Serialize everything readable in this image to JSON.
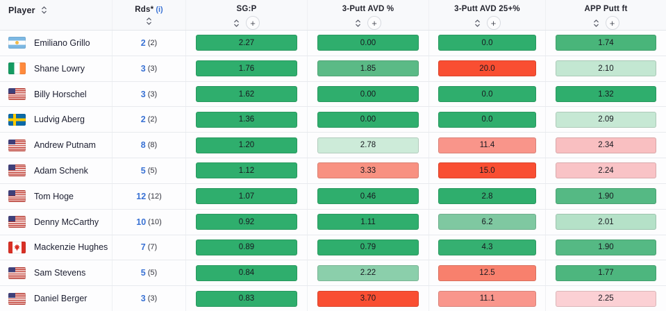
{
  "table": {
    "header": {
      "player": {
        "label": "Player"
      },
      "add_symbol": "+",
      "columns": [
        {
          "key": "rds",
          "label": "Rds*",
          "info": "(i)",
          "has_plus": false
        },
        {
          "key": "sgp",
          "label": "SG:P",
          "info": "",
          "has_plus": true
        },
        {
          "key": "tpa",
          "label": "3-Putt AVD %",
          "info": "",
          "has_plus": true
        },
        {
          "key": "tpa25",
          "label": "3-Putt AVD 25+%",
          "info": "",
          "has_plus": true
        },
        {
          "key": "app",
          "label": "APP Putt ft",
          "info": "",
          "has_plus": true
        }
      ]
    },
    "palette": {
      "strong_green": "#2fae6d",
      "medium_green": "#55b984",
      "light_green": "#c6e8d4",
      "strong_red": "#f94e32",
      "salmon": "#f9958a",
      "pink": "#f9c3c6",
      "rounds_blue": "#3a72d4"
    },
    "rows": [
      {
        "player": "Emiliano Grillo",
        "country": "argentina",
        "rounds": "2",
        "rounds_paren": "(2)",
        "cells": [
          {
            "value": "2.27",
            "color": "#2fae6d"
          },
          {
            "value": "0.00",
            "color": "#2fae6d"
          },
          {
            "value": "0.0",
            "color": "#2fae6d"
          },
          {
            "value": "1.74",
            "color": "#49b57a"
          }
        ]
      },
      {
        "player": "Shane Lowry",
        "country": "ireland",
        "rounds": "3",
        "rounds_paren": "(3)",
        "cells": [
          {
            "value": "1.76",
            "color": "#2fae6d"
          },
          {
            "value": "1.85",
            "color": "#5bba86"
          },
          {
            "value": "20.0",
            "color": "#f94e32"
          },
          {
            "value": "2.10",
            "color": "#c3e7d2"
          }
        ]
      },
      {
        "player": "Billy Horschel",
        "country": "usa",
        "rounds": "3",
        "rounds_paren": "(3)",
        "cells": [
          {
            "value": "1.62",
            "color": "#2fae6d"
          },
          {
            "value": "0.00",
            "color": "#2fae6d"
          },
          {
            "value": "0.0",
            "color": "#2fae6d"
          },
          {
            "value": "1.32",
            "color": "#2fae6d"
          }
        ]
      },
      {
        "player": "Ludvig Aberg",
        "country": "sweden",
        "rounds": "2",
        "rounds_paren": "(2)",
        "cells": [
          {
            "value": "1.36",
            "color": "#2fae6d"
          },
          {
            "value": "0.00",
            "color": "#2fae6d"
          },
          {
            "value": "0.0",
            "color": "#2fae6d"
          },
          {
            "value": "2.09",
            "color": "#c6e8d4"
          }
        ]
      },
      {
        "player": "Andrew Putnam",
        "country": "usa",
        "rounds": "8",
        "rounds_paren": "(8)",
        "cells": [
          {
            "value": "1.20",
            "color": "#2fae6d"
          },
          {
            "value": "2.78",
            "color": "#cdebd9"
          },
          {
            "value": "11.4",
            "color": "#f9958a"
          },
          {
            "value": "2.34",
            "color": "#f9bfc1"
          }
        ]
      },
      {
        "player": "Adam Schenk",
        "country": "usa",
        "rounds": "5",
        "rounds_paren": "(5)",
        "cells": [
          {
            "value": "1.12",
            "color": "#2fae6d"
          },
          {
            "value": "3.33",
            "color": "#f89181"
          },
          {
            "value": "15.0",
            "color": "#f94e32"
          },
          {
            "value": "2.24",
            "color": "#f9c3c6"
          }
        ]
      },
      {
        "player": "Tom Hoge",
        "country": "usa",
        "rounds": "12",
        "rounds_paren": "(12)",
        "cells": [
          {
            "value": "1.07",
            "color": "#2fae6d"
          },
          {
            "value": "0.46",
            "color": "#2fae6d"
          },
          {
            "value": "2.8",
            "color": "#2fae6d"
          },
          {
            "value": "1.90",
            "color": "#55b984"
          }
        ]
      },
      {
        "player": "Denny McCarthy",
        "country": "usa",
        "rounds": "10",
        "rounds_paren": "(10)",
        "cells": [
          {
            "value": "0.92",
            "color": "#2fae6d"
          },
          {
            "value": "1.11",
            "color": "#2fae6d"
          },
          {
            "value": "6.2",
            "color": "#7fc8a1"
          },
          {
            "value": "2.01",
            "color": "#b5e1c8"
          }
        ]
      },
      {
        "player": "Mackenzie Hughes",
        "country": "canada",
        "rounds": "7",
        "rounds_paren": "(7)",
        "cells": [
          {
            "value": "0.89",
            "color": "#2fae6d"
          },
          {
            "value": "0.79",
            "color": "#2fae6d"
          },
          {
            "value": "4.3",
            "color": "#35b071"
          },
          {
            "value": "1.90",
            "color": "#55b984"
          }
        ]
      },
      {
        "player": "Sam Stevens",
        "country": "usa",
        "rounds": "5",
        "rounds_paren": "(5)",
        "cells": [
          {
            "value": "0.84",
            "color": "#2fae6d"
          },
          {
            "value": "2.22",
            "color": "#8bcfab"
          },
          {
            "value": "12.5",
            "color": "#f8806d"
          },
          {
            "value": "1.77",
            "color": "#4db67e"
          }
        ]
      },
      {
        "player": "Daniel Berger",
        "country": "usa",
        "rounds": "3",
        "rounds_paren": "(3)",
        "cells": [
          {
            "value": "0.83",
            "color": "#2fae6d"
          },
          {
            "value": "3.70",
            "color": "#f94e32"
          },
          {
            "value": "11.1",
            "color": "#f9968c"
          },
          {
            "value": "2.25",
            "color": "#fbd0d4"
          }
        ]
      }
    ]
  }
}
